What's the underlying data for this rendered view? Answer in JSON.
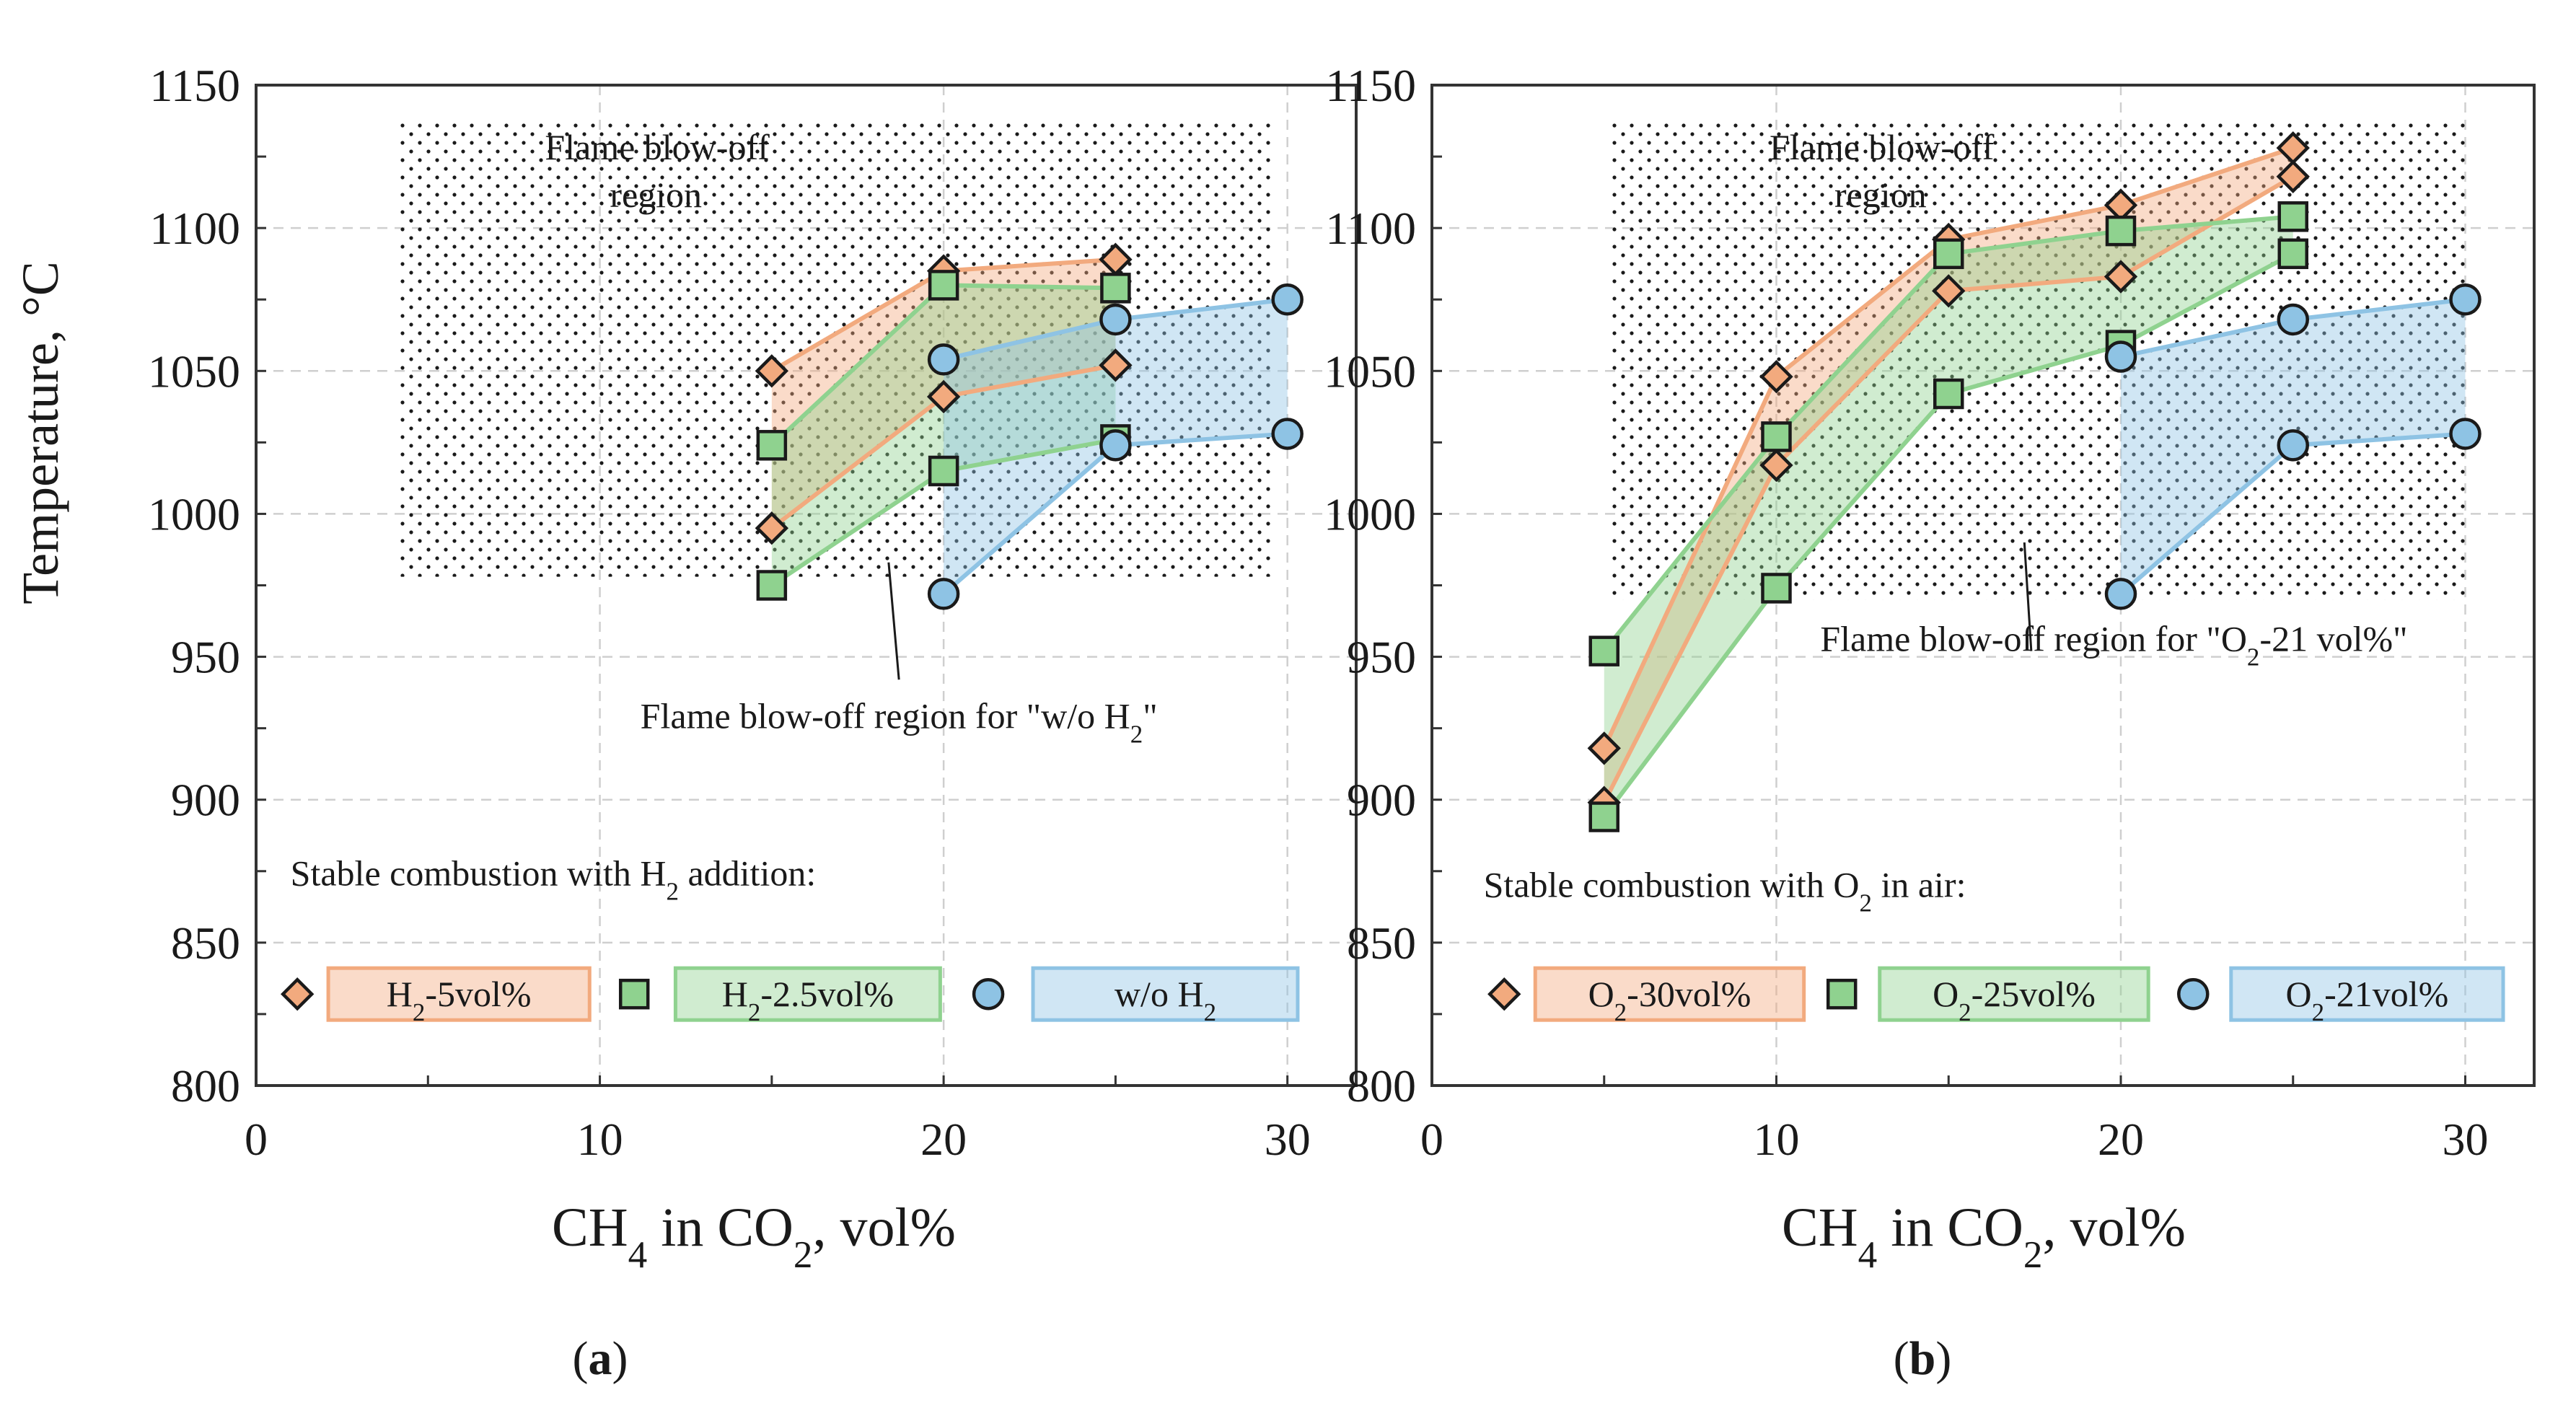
{
  "figure": {
    "y_axis_label": "Temperature, °C",
    "x_axis_label_parts": [
      "CH",
      "4",
      " in CO",
      "2",
      ", vol%"
    ]
  },
  "chart_data": [
    {
      "type": "scatter",
      "panel_label": "(a)",
      "panel_letter": "a",
      "xlim": [
        0,
        32
      ],
      "ylim": [
        800,
        1150
      ],
      "x_ticks": [
        0,
        10,
        20,
        30
      ],
      "y_ticks": [
        800,
        850,
        900,
        950,
        1000,
        1050,
        1100,
        1150
      ],
      "grid": true,
      "xlabel": "CH4 in CO2, vol%",
      "ylabel": "Temperature, °C",
      "blowoff_region": {
        "x_range": [
          4.2,
          29.6
        ],
        "y_range": [
          978,
          1138
        ]
      },
      "region_label_lines": [
        "Flame blow-off",
        "region"
      ],
      "region_label_anchor": [
        8.4,
        1124
      ],
      "callout": {
        "text_parts": [
          "Flame blow-off region for \"w/o H",
          "2",
          "\""
        ],
        "text_anchor": [
          18.7,
          925
        ],
        "line_from": [
          18.4,
          983
        ],
        "line_to": [
          18.7,
          942
        ]
      },
      "legend_title_parts": [
        "Stable combustion with H",
        "2",
        " addition:"
      ],
      "legend_title_anchor": [
        1.0,
        870
      ],
      "series": [
        {
          "name": "H2-5vol%",
          "label_parts": [
            "H",
            "2",
            "-5vol%"
          ],
          "marker": "diamond",
          "color": "#f2aa7e",
          "upper": [
            [
              15,
              1050
            ],
            [
              20,
              1085
            ],
            [
              25,
              1089
            ]
          ],
          "lower": [
            [
              15,
              995
            ],
            [
              20,
              1041
            ],
            [
              25,
              1052
            ]
          ],
          "legend_x": [
            1.2,
            2.1,
            9.7
          ]
        },
        {
          "name": "H2-2.5vol%",
          "label_parts": [
            "H",
            "2",
            "-2.5vol%"
          ],
          "marker": "square",
          "color": "#8fd28f",
          "upper": [
            [
              15,
              1024
            ],
            [
              20,
              1080
            ],
            [
              25,
              1079
            ]
          ],
          "lower": [
            [
              15,
              975
            ],
            [
              20,
              1015
            ],
            [
              25,
              1026
            ]
          ],
          "legend_x": [
            11.0,
            12.2,
            19.9
          ]
        },
        {
          "name": "w/o H2",
          "label_parts": [
            "w/o H",
            "2",
            ""
          ],
          "marker": "circle",
          "color": "#8ec3e4",
          "upper": [
            [
              20,
              1054
            ],
            [
              25,
              1068
            ],
            [
              30,
              1075
            ]
          ],
          "lower": [
            [
              20,
              972
            ],
            [
              25,
              1024
            ],
            [
              30,
              1028
            ]
          ],
          "legend_x": [
            21.3,
            22.6,
            30.3
          ]
        }
      ]
    },
    {
      "type": "scatter",
      "panel_label": "(b)",
      "panel_letter": "b",
      "xlim": [
        0,
        32
      ],
      "ylim": [
        800,
        1150
      ],
      "x_ticks": [
        0,
        10,
        20,
        30
      ],
      "y_ticks": [
        800,
        850,
        900,
        950,
        1000,
        1050,
        1100,
        1150
      ],
      "grid": true,
      "xlabel": "CH4 in CO2, vol%",
      "ylabel": "",
      "blowoff_region": {
        "x_range": [
          5.2,
          30.0
        ],
        "y_range": [
          970,
          1138
        ]
      },
      "region_label_lines": [
        "Flame blow-off",
        "region"
      ],
      "region_label_anchor": [
        9.8,
        1124
      ],
      "callout": {
        "text_parts": [
          "Flame blow-off region for \"O",
          "2",
          "-21 vol%\""
        ],
        "text_anchor": [
          19.8,
          952
        ],
        "line_from": [
          17.2,
          990
        ],
        "line_to": [
          17.4,
          952
        ]
      },
      "legend_title_parts": [
        "Stable combustion with O",
        "2",
        " in air:"
      ],
      "legend_title_anchor": [
        1.5,
        866
      ],
      "series": [
        {
          "name": "O2-30vol%",
          "label_parts": [
            "O",
            "2",
            "-30vol%"
          ],
          "marker": "diamond",
          "color": "#f2aa7e",
          "upper": [
            [
              5,
              918
            ],
            [
              10,
              1048
            ],
            [
              15,
              1096
            ],
            [
              20,
              1108
            ],
            [
              25,
              1128
            ]
          ],
          "lower": [
            [
              5,
              899
            ],
            [
              10,
              1017
            ],
            [
              15,
              1078
            ],
            [
              20,
              1083
            ],
            [
              25,
              1118
            ]
          ],
          "legend_x": [
            2.1,
            3.0,
            10.8
          ]
        },
        {
          "name": "O2-25vol%",
          "label_parts": [
            "O",
            "2",
            "-25vol%"
          ],
          "marker": "square",
          "color": "#8fd28f",
          "upper": [
            [
              5,
              952
            ],
            [
              10,
              1027
            ],
            [
              15,
              1091
            ],
            [
              20,
              1099
            ],
            [
              25,
              1104
            ]
          ],
          "lower": [
            [
              5,
              894
            ],
            [
              10,
              974
            ],
            [
              15,
              1042
            ],
            [
              20,
              1059
            ],
            [
              25,
              1091
            ]
          ],
          "legend_x": [
            11.9,
            13.0,
            20.8
          ]
        },
        {
          "name": "O2-21vol%",
          "label_parts": [
            "O",
            "2",
            "-21vol%"
          ],
          "marker": "circle",
          "color": "#8ec3e4",
          "upper": [
            [
              20,
              1055
            ],
            [
              25,
              1068
            ],
            [
              30,
              1075
            ]
          ],
          "lower": [
            [
              20,
              972
            ],
            [
              25,
              1024
            ],
            [
              30,
              1028
            ]
          ],
          "legend_x": [
            22.1,
            23.2,
            31.1
          ]
        }
      ]
    }
  ]
}
